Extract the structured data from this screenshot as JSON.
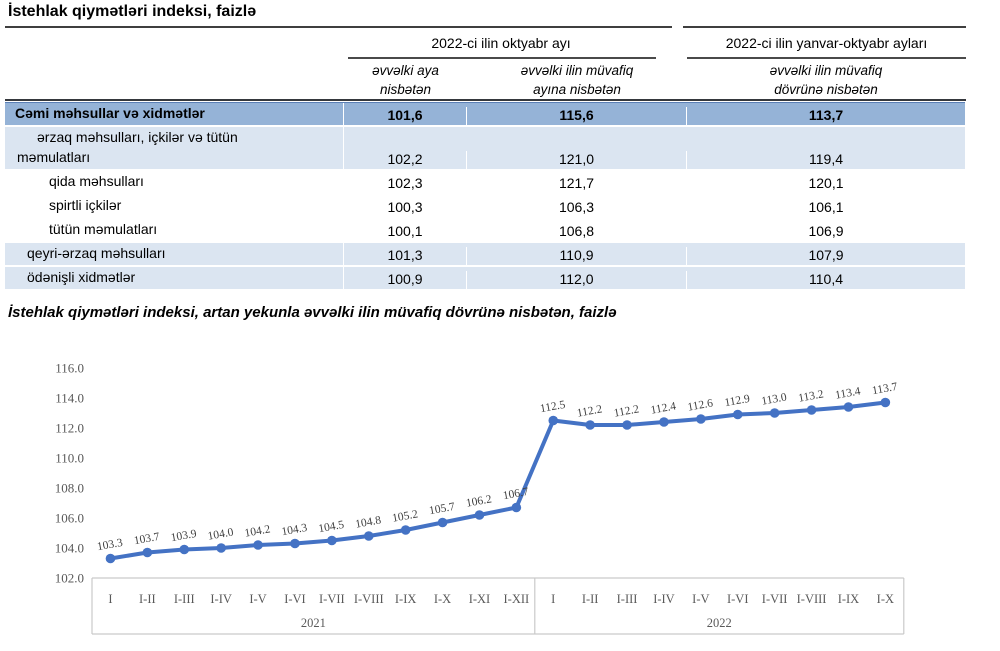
{
  "page_title": "İstehlak qiymətləri indeksi, faizlə",
  "table": {
    "title": "İstehlak qiymətləri indeksi, faizlə",
    "group_headers": [
      {
        "label": "2022-ci ilin oktyabr ayı"
      },
      {
        "label": "2022-ci ilin yanvar-oktyabr ayları"
      }
    ],
    "col_headers": [
      "əvvəlki aya\nnisbətən",
      "əvvəlki ilin müvafiq\nayına nisbətən",
      "əvvəlki ilin müvafiq\ndövrünə nisbətən"
    ],
    "rows": [
      {
        "label": "Cəmi məhsullar və xidmətlər",
        "values": [
          "101,6",
          "115,6",
          "113,7"
        ],
        "style": "total",
        "level": 0,
        "hang": false
      },
      {
        "label": "ərzaq məhsulları, içkilər və tütün\nməmulatları",
        "values": [
          "102,2",
          "121,0",
          "119,4"
        ],
        "style": "alt",
        "level": 1,
        "hang": true
      },
      {
        "label": "qida məhsulları",
        "values": [
          "102,3",
          "121,7",
          "120,1"
        ],
        "style": "plain",
        "level": 2,
        "hang": false
      },
      {
        "label": "spirtli içkilər",
        "values": [
          "100,3",
          "106,3",
          "106,1"
        ],
        "style": "plain",
        "level": 2,
        "hang": false
      },
      {
        "label": "tütün məmulatları",
        "values": [
          "100,1",
          "106,8",
          "106,9"
        ],
        "style": "plain",
        "level": 2,
        "hang": false
      },
      {
        "label": "qeyri-ərzaq məhsulları",
        "values": [
          "101,3",
          "110,9",
          "107,9"
        ],
        "style": "alt",
        "level": 1,
        "hang": false
      },
      {
        "label": "ödənişli xidmətlər",
        "values": [
          "100,9",
          "112,0",
          "110,4"
        ],
        "style": "alt",
        "level": 1,
        "hang": false
      }
    ]
  },
  "chart_data": {
    "type": "line",
    "title": "İstehlak qiymətləri indeksi, artan yekunla əvvəlki ilin müvafiq dövrünə nisbətən, faizlə",
    "x": [
      "I",
      "I-II",
      "I-III",
      "I-IV",
      "I-V",
      "I-VI",
      "I-VII",
      "I-VIII",
      "I-IX",
      "I-X",
      "I-XI",
      "I-XII",
      "I",
      "I-II",
      "I-III",
      "I-IV",
      "I-V",
      "I-VI",
      "I-VII",
      "I-VIII",
      "I-IX",
      "I-X"
    ],
    "year_groups": [
      {
        "label": "2021",
        "count": 12
      },
      {
        "label": "2022",
        "count": 10
      }
    ],
    "values": [
      103.3,
      103.7,
      103.9,
      104.0,
      104.2,
      104.3,
      104.5,
      104.8,
      105.2,
      105.7,
      106.2,
      106.7,
      112.5,
      112.2,
      112.2,
      112.4,
      112.6,
      112.9,
      113.0,
      113.2,
      113.4,
      113.7
    ],
    "ylim": [
      102.0,
      116.0
    ],
    "ytick_step": 2.0,
    "grid": false,
    "legend": "none",
    "data_labels": true
  },
  "colors": {
    "accent_line": "#4472C4",
    "total_row_bg": "#95B3D7",
    "alt_row_bg": "#DBE5F1",
    "axis_line": "#C9C9C9",
    "tick_text": "#595959",
    "data_label_text": "#3F3F3F"
  }
}
